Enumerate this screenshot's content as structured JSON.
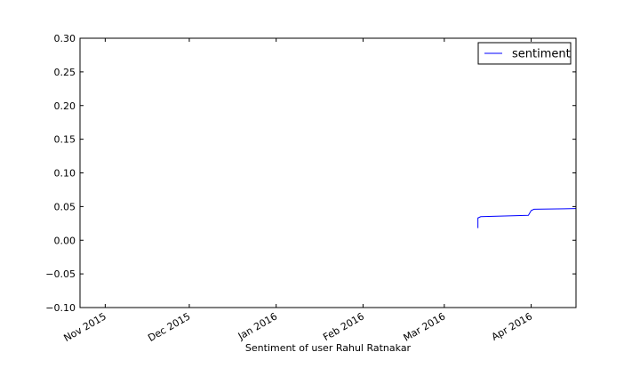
{
  "chart_data": {
    "type": "line",
    "title": "",
    "xlabel": "Sentiment of user Rahul Ratnakar",
    "ylabel": "",
    "xlim": [
      "2015-10-23",
      "2016-04-17"
    ],
    "ylim": [
      -0.1,
      0.3
    ],
    "grid": false,
    "legend_position": "top-right",
    "x_ticks": [
      {
        "date": "2015-11-01",
        "label": "Nov 2015"
      },
      {
        "date": "2015-12-01",
        "label": "Dec 2015"
      },
      {
        "date": "2016-01-01",
        "label": "Jan 2016"
      },
      {
        "date": "2016-02-01",
        "label": "Feb 2016"
      },
      {
        "date": "2016-03-01",
        "label": "Mar 2016"
      },
      {
        "date": "2016-04-01",
        "label": "Apr 2016"
      }
    ],
    "y_ticks": [
      {
        "value": -0.1,
        "label": "−0.10"
      },
      {
        "value": -0.05,
        "label": "−0.05"
      },
      {
        "value": 0.0,
        "label": "0.00"
      },
      {
        "value": 0.05,
        "label": "0.05"
      },
      {
        "value": 0.1,
        "label": "0.10"
      },
      {
        "value": 0.15,
        "label": "0.15"
      },
      {
        "value": 0.2,
        "label": "0.20"
      },
      {
        "value": 0.25,
        "label": "0.25"
      },
      {
        "value": 0.3,
        "label": "0.30"
      }
    ],
    "series": [
      {
        "name": "sentiment",
        "color": "#0000ff",
        "points": [
          {
            "x": "2016-03-13",
            "y": 0.018
          },
          {
            "x": "2016-03-13",
            "y": 0.033
          },
          {
            "x": "2016-03-14",
            "y": 0.035
          },
          {
            "x": "2016-03-31",
            "y": 0.037
          },
          {
            "x": "2016-04-01",
            "y": 0.044
          },
          {
            "x": "2016-04-02",
            "y": 0.046
          },
          {
            "x": "2016-04-17",
            "y": 0.047
          }
        ]
      }
    ]
  }
}
